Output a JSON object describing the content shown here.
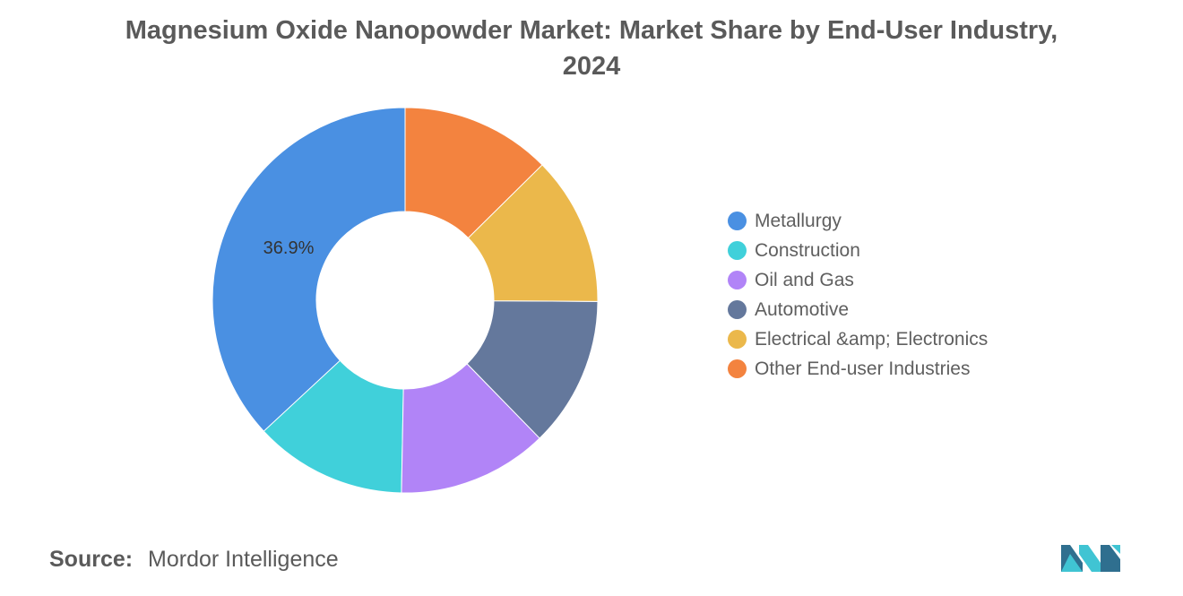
{
  "chart_data": {
    "type": "pie",
    "title_lines": [
      "Magnesium Oxide Nanopowder Market: Market Share by End-User Industry,",
      "2024"
    ],
    "categories": [
      "Metallurgy",
      "Construction",
      "Oil and Gas",
      "Automotive",
      "Electrical &amp; Electronics",
      "Other End-user Industries"
    ],
    "values": [
      36.9,
      12.8,
      12.6,
      12.6,
      12.5,
      12.6
    ],
    "colors": [
      "#4a90e2",
      "#40d0da",
      "#b184f7",
      "#64789c",
      "#ebb84b",
      "#f3833f"
    ],
    "data_labels": [
      "36.9%",
      "",
      "",
      "",
      "",
      ""
    ],
    "donut": true,
    "legend_position": "right"
  },
  "source": {
    "label": "Source:",
    "value": "Mordor Intelligence"
  },
  "logo": {
    "icon": "mordor-intelligence-logo",
    "colors": [
      "#2f6f8f",
      "#40c4d3"
    ]
  }
}
